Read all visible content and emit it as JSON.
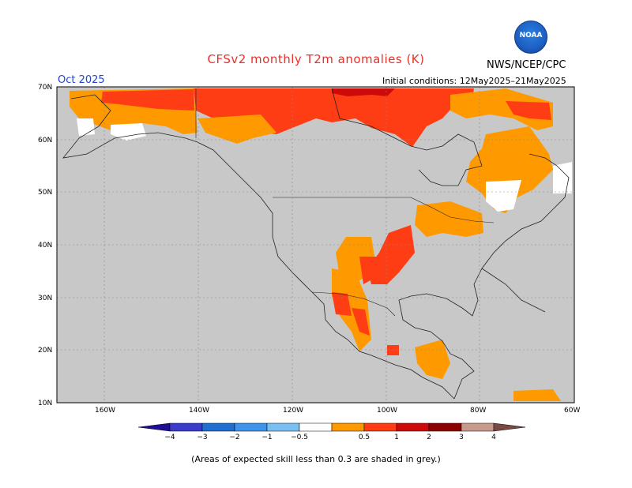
{
  "title": "CFSv2 monthly T2m anomalies (K)",
  "month": "Oct 2025",
  "agency": "NWS/NCEP/CPC",
  "logo_text": "NOAA",
  "initial_conditions": "Initial conditions: 12May2025–21May2025",
  "note": "(Areas of expected skill less than 0.3 are shaded in grey.)",
  "lat_labels": [
    "70N",
    "60N",
    "50N",
    "40N",
    "30N",
    "20N",
    "10N"
  ],
  "lon_labels": [
    "160W",
    "140W",
    "120W",
    "100W",
    "80W",
    "60W"
  ],
  "colorbar": {
    "labels": [
      "−4",
      "−3",
      "−2",
      "−1",
      "−0.5",
      "0.5",
      "1",
      "2",
      "3",
      "4"
    ],
    "colors": [
      "#1e0f96",
      "#3b3bcc",
      "#1f6fd0",
      "#3d94e8",
      "#79bff2",
      "#ffffff",
      "#ff9900",
      "#ff3d14",
      "#cc0a0a",
      "#8c0000",
      "#c89a8c",
      "#7a4a42"
    ]
  },
  "colors": {
    "land_grey": "#c8c8c8",
    "ocean_grey": "#c8c8c8",
    "white": "#ffffff",
    "orange": "#ff9900",
    "red": "#ff3d14",
    "dark_red": "#cc0a0a"
  }
}
